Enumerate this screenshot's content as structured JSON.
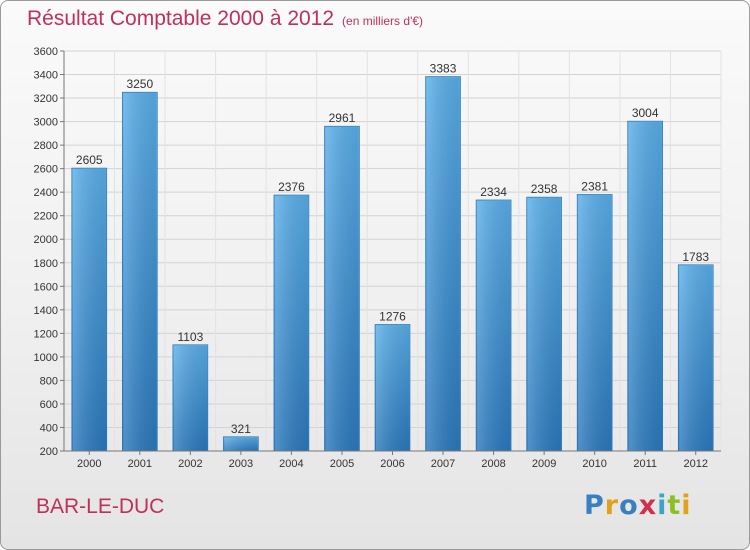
{
  "header": {
    "title": "Résultat Comptable 2000 à 2012",
    "subtitle": "(en milliers d'€)"
  },
  "footer": {
    "place": "BAR-LE-DUC",
    "logo": [
      "P",
      "r",
      "o",
      "x",
      "i",
      "t",
      "i"
    ],
    "logo_colors": [
      "#3a7fc2",
      "#e0a11b",
      "#3a7fc2",
      "#d22f4a",
      "#3aa5c9",
      "#8cbf26",
      "#e0a11b"
    ]
  },
  "chart_data": {
    "type": "bar",
    "categories": [
      "2000",
      "2001",
      "2002",
      "2003",
      "2004",
      "2005",
      "2006",
      "2007",
      "2008",
      "2009",
      "2010",
      "2011",
      "2012"
    ],
    "values": [
      2605,
      3250,
      1103,
      321,
      2376,
      2961,
      1276,
      3383,
      2334,
      2358,
      2381,
      3004,
      1783
    ],
    "ylim": [
      200,
      3600
    ],
    "yticks": [
      200,
      400,
      600,
      800,
      1000,
      1200,
      1400,
      1600,
      1800,
      2000,
      2200,
      2400,
      2600,
      2800,
      3000,
      3200,
      3400,
      3600
    ],
    "grid": true,
    "bar_color": "#4a9fde",
    "bar_color_dark": "#2f7ec3"
  }
}
